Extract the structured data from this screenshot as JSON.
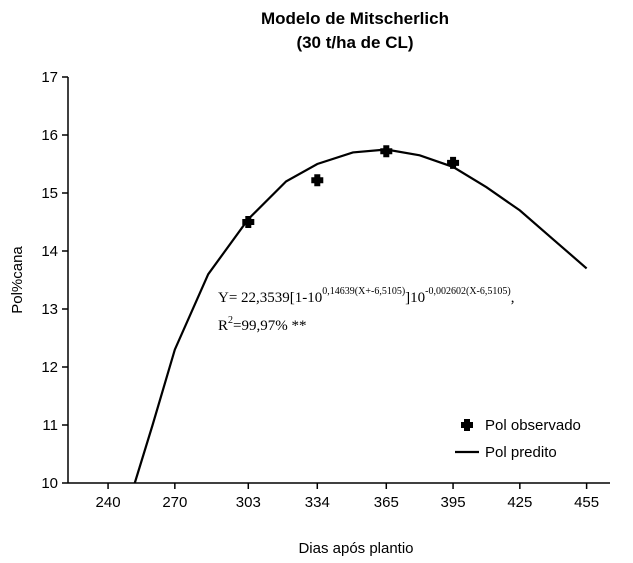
{
  "chart_data": {
    "type": "scatter-line",
    "title": [
      "Modelo de Mitscherlich",
      "(30 t/ha de CL)"
    ],
    "x_label": "Dias após plantio",
    "y_label": "Pol%cana",
    "xlim": [
      222,
      470
    ],
    "ylim": [
      10,
      17
    ],
    "xticks": [
      240,
      270,
      303,
      334,
      365,
      395,
      425,
      455
    ],
    "yticks": [
      10,
      11,
      12,
      13,
      14,
      15,
      16,
      17
    ],
    "legend": "lower right",
    "series": [
      {
        "name": "Pol observado",
        "kind": "points",
        "color": "#000000",
        "x": [
          303,
          334,
          365,
          395
        ],
        "values": [
          14.5,
          15.22,
          15.72,
          15.52
        ]
      },
      {
        "name": "Pol predito",
        "kind": "line",
        "color": "#000000",
        "x": [
          252,
          260,
          270,
          285,
          303,
          320,
          334,
          350,
          365,
          380,
          395,
          410,
          425,
          440,
          455
        ],
        "values": [
          10.0,
          11.0,
          12.3,
          13.6,
          14.55,
          15.2,
          15.5,
          15.7,
          15.75,
          15.65,
          15.45,
          15.1,
          14.7,
          14.2,
          13.7
        ]
      }
    ],
    "annotation": {
      "equation": [
        "Y= 22,3539[1-10",
        "0,14639(X+-6,5105)",
        "]10",
        "-0,002602(X-6,5105)",
        ","
      ],
      "r2": [
        "R",
        "2",
        "=99,97% **"
      ]
    }
  }
}
